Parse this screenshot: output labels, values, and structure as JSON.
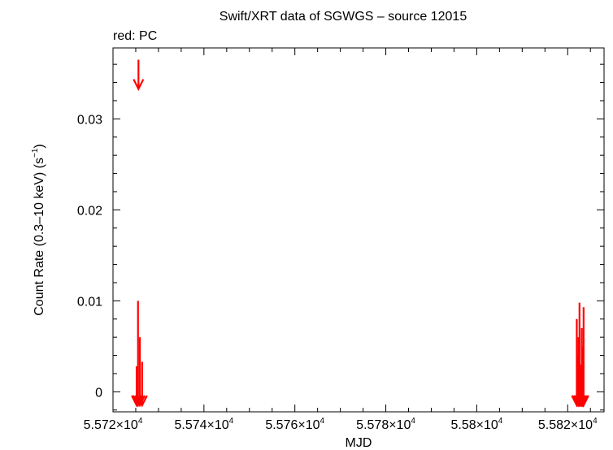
{
  "chart_data": {
    "type": "scatter",
    "title": "Swift/XRT data of SGWGS – source 12015",
    "legend_note": "red: PC",
    "xlabel": "MJD",
    "ylabel": "Count Rate (0.3–10 keV) (s",
    "ylabel_sup": "−1",
    "ylabel_tail": ")",
    "xlim": [
      55720,
      55828
    ],
    "ylim": [
      -0.0022,
      0.0378
    ],
    "x_ticks": [
      {
        "value": 55720,
        "mantissa": "5.572×10",
        "exp": "4"
      },
      {
        "value": 55740,
        "mantissa": "5.574×10",
        "exp": "4"
      },
      {
        "value": 55760,
        "mantissa": "5.576×10",
        "exp": "4"
      },
      {
        "value": 55780,
        "mantissa": "5.578×10",
        "exp": "4"
      },
      {
        "value": 55800,
        "mantissa": "5.58×10",
        "exp": "4"
      },
      {
        "value": 55820,
        "mantissa": "5.582×10",
        "exp": "4"
      }
    ],
    "y_ticks": [
      {
        "value": 0,
        "label": "0"
      },
      {
        "value": 0.01,
        "label": "0.01"
      },
      {
        "value": 0.02,
        "label": "0.02"
      },
      {
        "value": 0.03,
        "label": "0.03"
      }
    ],
    "grid": false,
    "series": [
      {
        "name": "PC",
        "color": "#ff0000",
        "kind": "upper_limits",
        "points": [
          {
            "x": 55725.6,
            "y": 0.0365
          },
          {
            "x": 55725.5,
            "y": 0.01
          },
          {
            "x": 55725.9,
            "y": 0.006
          },
          {
            "x": 55726.4,
            "y": 0.0033
          },
          {
            "x": 55725.2,
            "y": 0.0028
          },
          {
            "x": 55822.6,
            "y": 0.0098
          },
          {
            "x": 55823.5,
            "y": 0.0093
          },
          {
            "x": 55822.0,
            "y": 0.008
          },
          {
            "x": 55823.1,
            "y": 0.007
          },
          {
            "x": 55822.4,
            "y": 0.006
          },
          {
            "x": 55823.3,
            "y": 0.005
          },
          {
            "x": 55822.1,
            "y": 0.004
          },
          {
            "x": 55822.8,
            "y": 0.003
          },
          {
            "x": 55823.4,
            "y": 0.002
          }
        ]
      }
    ]
  }
}
